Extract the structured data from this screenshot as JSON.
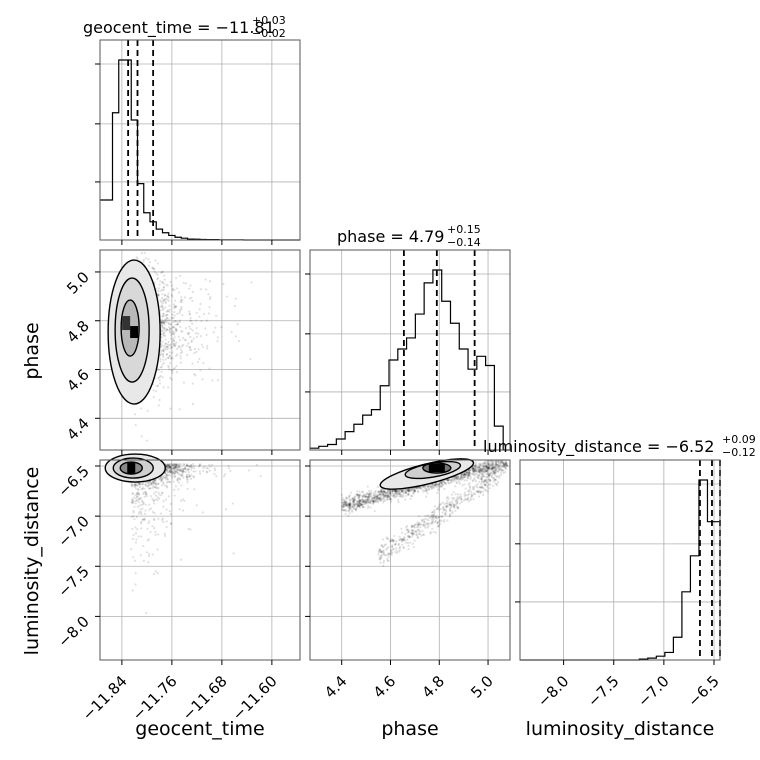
{
  "chart_data": {
    "type": "corner",
    "parameters": [
      {
        "name": "geocent_time",
        "title_prefix": "geocent_time = ",
        "title_value": "−11.81",
        "err_plus": "+0.03",
        "err_minus": "−0.02",
        "range": [
          -11.875,
          -11.555
        ],
        "ticks": [
          -11.84,
          -11.76,
          -11.68,
          -11.6
        ],
        "tick_labels": [
          "−11.84",
          "−11.76",
          "−11.68",
          "−11.60"
        ],
        "quantiles": [
          -11.83,
          -11.815,
          -11.79
        ]
      },
      {
        "name": "phase",
        "title_prefix": "phase = ",
        "title_value": "4.79",
        "err_plus": "+0.15",
        "err_minus": "−0.14",
        "range": [
          4.27,
          5.09
        ],
        "ticks": [
          4.4,
          4.6,
          4.8,
          5.0
        ],
        "tick_labels": [
          "4.4",
          "4.6",
          "4.8",
          "5.0"
        ],
        "quantiles": [
          4.655,
          4.79,
          4.945
        ]
      },
      {
        "name": "luminosity_distance",
        "title_prefix": "luminosity_distance = ",
        "title_value": "−6.52",
        "err_plus": "+0.09",
        "err_minus": "−0.12",
        "range": [
          -8.435,
          -6.44
        ],
        "ticks": [
          -8.0,
          -7.5,
          -7.0,
          -6.5
        ],
        "tick_labels": [
          "−8.0",
          "−7.5",
          "−7.0",
          "−6.5"
        ],
        "quantiles": [
          -6.64,
          -6.52,
          -6.44
        ]
      }
    ],
    "hist_geocent_time": {
      "bin_edges": [
        -11.875,
        -11.865,
        -11.855,
        -11.845,
        -11.835,
        -11.825,
        -11.815,
        -11.805,
        -11.795,
        -11.785,
        -11.775,
        -11.765,
        -11.755,
        -11.745,
        -11.735,
        -11.725,
        -11.715,
        -11.705,
        -11.695,
        -11.685,
        -11.675,
        -11.665,
        -11.655,
        -11.645,
        -11.635,
        -11.625,
        -11.615,
        -11.605,
        -11.595,
        -11.585,
        -11.575,
        -11.565,
        -11.555
      ],
      "counts": [
        0.22,
        0.22,
        0.7,
        0.99,
        0.99,
        0.66,
        0.31,
        0.15,
        0.1,
        0.06,
        0.04,
        0.025,
        0.015,
        0.01,
        0.005,
        0.004,
        0.003,
        0.002,
        0.002,
        0.001,
        0.001,
        0.001,
        0.001,
        0.0,
        0.0,
        0.0,
        0.0,
        0.0,
        0.0,
        0.0,
        0.0,
        0.0
      ]
    },
    "hist_phase": {
      "bin_edges": [
        4.27,
        4.306,
        4.342,
        4.378,
        4.414,
        4.45,
        4.486,
        4.522,
        4.558,
        4.594,
        4.63,
        4.666,
        4.702,
        4.738,
        4.774,
        4.81,
        4.846,
        4.882,
        4.918,
        4.954,
        4.99,
        5.026,
        5.062,
        5.09
      ],
      "counts": [
        0.01,
        0.02,
        0.03,
        0.06,
        0.1,
        0.14,
        0.19,
        0.22,
        0.35,
        0.49,
        0.55,
        0.61,
        0.74,
        0.91,
        0.98,
        0.81,
        0.69,
        0.55,
        0.44,
        0.51,
        0.46,
        0.13,
        0.0
      ]
    },
    "hist_luminosity_distance": {
      "bin_edges": [
        -8.435,
        -8.35,
        -8.265,
        -8.18,
        -8.095,
        -8.01,
        -7.925,
        -7.84,
        -7.755,
        -7.67,
        -7.585,
        -7.5,
        -7.415,
        -7.33,
        -7.245,
        -7.16,
        -7.075,
        -6.99,
        -6.905,
        -6.82,
        -6.735,
        -6.65,
        -6.565,
        -6.48,
        -6.44
      ],
      "counts": [
        0,
        0,
        0,
        0,
        0,
        0,
        0,
        0,
        0,
        0,
        0,
        0,
        0,
        0,
        0.005,
        0.01,
        0.02,
        0.04,
        0.12,
        0.36,
        0.55,
        0.95,
        0.73,
        0.73
      ]
    },
    "density_peaks": {
      "geocent_time_phase": [
        -11.83,
        4.77
      ],
      "geocent_time_luminosity_distance": [
        -11.825,
        -6.52
      ],
      "phase_luminosity_distance": [
        4.79,
        -6.52
      ]
    },
    "colors": {
      "line": "#000000",
      "grid": "#b0b0b0",
      "frame": "#555555",
      "fill": "#e8e8e8"
    }
  }
}
